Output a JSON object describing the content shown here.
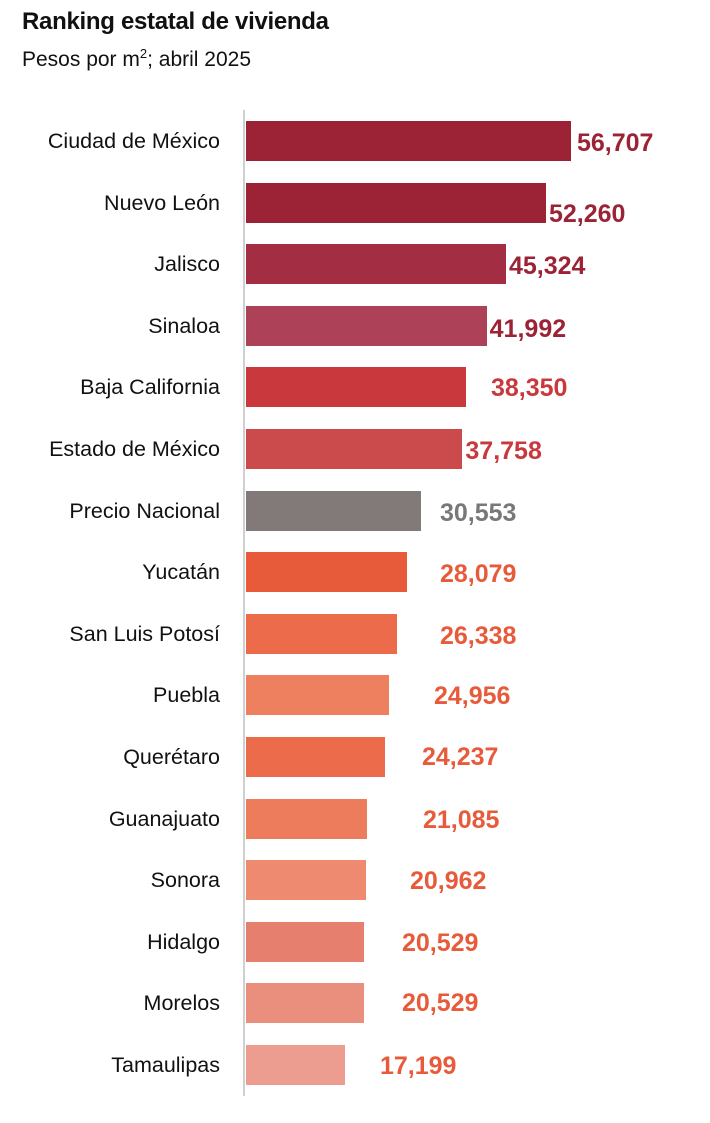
{
  "chart_data": {
    "type": "bar",
    "orientation": "horizontal",
    "title": "Ranking estatal de vivienda",
    "subtitle_prefix": "Pesos por m",
    "subtitle_sup": "2",
    "subtitle_suffix": "; abril 2025",
    "xlabel": "",
    "ylabel": "",
    "xlim": [
      0,
      56707
    ],
    "grid": false,
    "categories": [
      "Ciudad de México",
      "Nuevo León",
      "Jalisco",
      "Sinaloa",
      "Baja California",
      "Estado de México",
      "Precio Nacional",
      "Yucatán",
      "San Luis Potosí",
      "Puebla",
      "Querétaro",
      "Guanajuato",
      "Sonora",
      "Hidalgo",
      "Morelos",
      "Tamaulipas"
    ],
    "values": [
      56707,
      52260,
      45324,
      41992,
      38350,
      37758,
      30553,
      28079,
      26338,
      24956,
      24237,
      21085,
      20962,
      20529,
      20529,
      17199
    ],
    "value_labels": [
      "56,707",
      "52,260",
      "45,324",
      "41,992",
      "38,350",
      "37,758",
      "30,553",
      "28,079",
      "26,338",
      "24,956",
      "24,237",
      "21,085",
      "20,962",
      "20,529",
      "20,529",
      "17,199"
    ],
    "bar_colors": [
      "#9b2335",
      "#9b2335",
      "#a32e44",
      "#ad4158",
      "#c8383d",
      "#cb4a4c",
      "#827a78",
      "#e85b3a",
      "#ec6b4b",
      "#ee7f5f",
      "#ec6b4b",
      "#ec7c5c",
      "#ee8a70",
      "#e77f6e",
      "#ea8e7e",
      "#ec9d8f"
    ],
    "label_colors": [
      "#9b2335",
      "#9b2335",
      "#9b2335",
      "#9b2335",
      "#c8383d",
      "#c8383d",
      "#7a7777",
      "#e85b3a",
      "#e85b3a",
      "#e85b3a",
      "#e85b3a",
      "#e85b3a",
      "#e85b3a",
      "#e85b3a",
      "#e85b3a",
      "#e85b3a"
    ]
  }
}
